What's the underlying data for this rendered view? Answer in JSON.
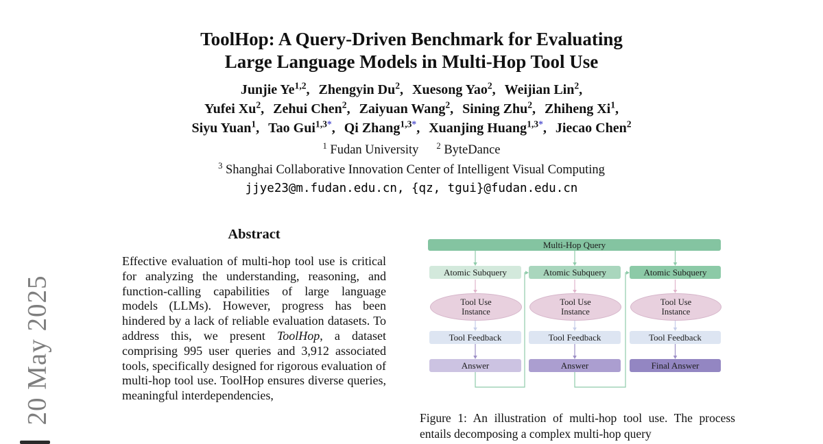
{
  "page": {
    "watermark_date": "20 May 2025"
  },
  "title": {
    "line1": "ToolHop: A Query-Driven Benchmark for Evaluating",
    "line2": "Large Language Models in Multi-Hop Tool Use"
  },
  "authors": {
    "star_color": "#5353cf",
    "lines": [
      [
        {
          "name": "Junjie Ye",
          "sup": "1,2",
          "sep": ","
        },
        {
          "name": "Zhengyin Du",
          "sup": "2",
          "sep": ","
        },
        {
          "name": "Xuesong Yao",
          "sup": "2",
          "sep": ","
        },
        {
          "name": "Weijian Lin",
          "sup": "2",
          "sep": ","
        }
      ],
      [
        {
          "name": "Yufei Xu",
          "sup": "2",
          "sep": ","
        },
        {
          "name": "Zehui Chen",
          "sup": "2",
          "sep": ","
        },
        {
          "name": "Zaiyuan Wang",
          "sup": "2",
          "sep": ","
        },
        {
          "name": "Sining Zhu",
          "sup": "2",
          "sep": ","
        },
        {
          "name": "Zhiheng Xi",
          "sup": "1",
          "sep": ","
        }
      ],
      [
        {
          "name": "Siyu Yuan",
          "sup": "1",
          "sep": ","
        },
        {
          "name": "Tao Gui",
          "sup": "1,3",
          "star": "*",
          "sep": ","
        },
        {
          "name": "Qi Zhang",
          "sup": "1,3",
          "star": "*",
          "sep": ","
        },
        {
          "name": "Xuanjing Huang",
          "sup": "1,3",
          "star": "*",
          "sep": ","
        },
        {
          "name": "Jiecao Chen",
          "sup": "2",
          "sep": ""
        }
      ]
    ]
  },
  "affiliations": [
    {
      "sup": "1",
      "text": "Fudan University"
    },
    {
      "sup": "2",
      "text": "ByteDance"
    },
    {
      "sup": "3",
      "text": "Shanghai Collaborative Innovation Center of Intelligent Visual Computing"
    }
  ],
  "emails": "jjye23@m.fudan.edu.cn, {qz, tgui}@fudan.edu.cn",
  "abstract": {
    "heading": "Abstract",
    "segments": [
      {
        "text": "Effective evaluation of multi-hop tool use is critical for analyzing the understanding, reasoning, and function-calling capabilities of large language models (LLMs).  However, progress has been hindered by a lack of reliable evaluation datasets.  To address this, we present "
      },
      {
        "text": "ToolHop",
        "italic": true
      },
      {
        "text": ", a dataset comprising 995 user queries and 3,912 associated tools, specifically designed for rigorous evaluation of multi-hop tool use.  ToolHop ensures diverse queries, meaningful interdependencies,"
      }
    ]
  },
  "figure": {
    "root": {
      "label": "Multi-Hop Query",
      "fill": "#84c4a1"
    },
    "labels": {
      "subquery": "Atomic Subquery",
      "instance_line1": "Tool Use",
      "instance_line2": "Instance",
      "feedback": "Tool Feedback"
    },
    "columns": [
      {
        "subquery_fill": "#d3e9dc",
        "answer_label": "Answer",
        "answer_fill": "#ccc3e2"
      },
      {
        "subquery_fill": "#a9d6bd",
        "answer_label": "Answer",
        "answer_fill": "#ab9ed0"
      },
      {
        "subquery_fill": "#8ccaa7",
        "answer_label": "Final Answer",
        "answer_fill": "#9386c2"
      }
    ],
    "colors": {
      "ellipse_fill": "#e8d0de",
      "ellipse_stroke": "#d5b4c9",
      "feedback_fill": "#dde5f2",
      "arrow_green": "#8fcbaa",
      "line_pink": "#e0b4cb",
      "line_lavender": "#c6cde9",
      "line_purple": "#9d90c6"
    },
    "caption": "Figure 1: An illustration of multi-hop tool use.  The process entails decomposing a complex multi-hop query"
  }
}
